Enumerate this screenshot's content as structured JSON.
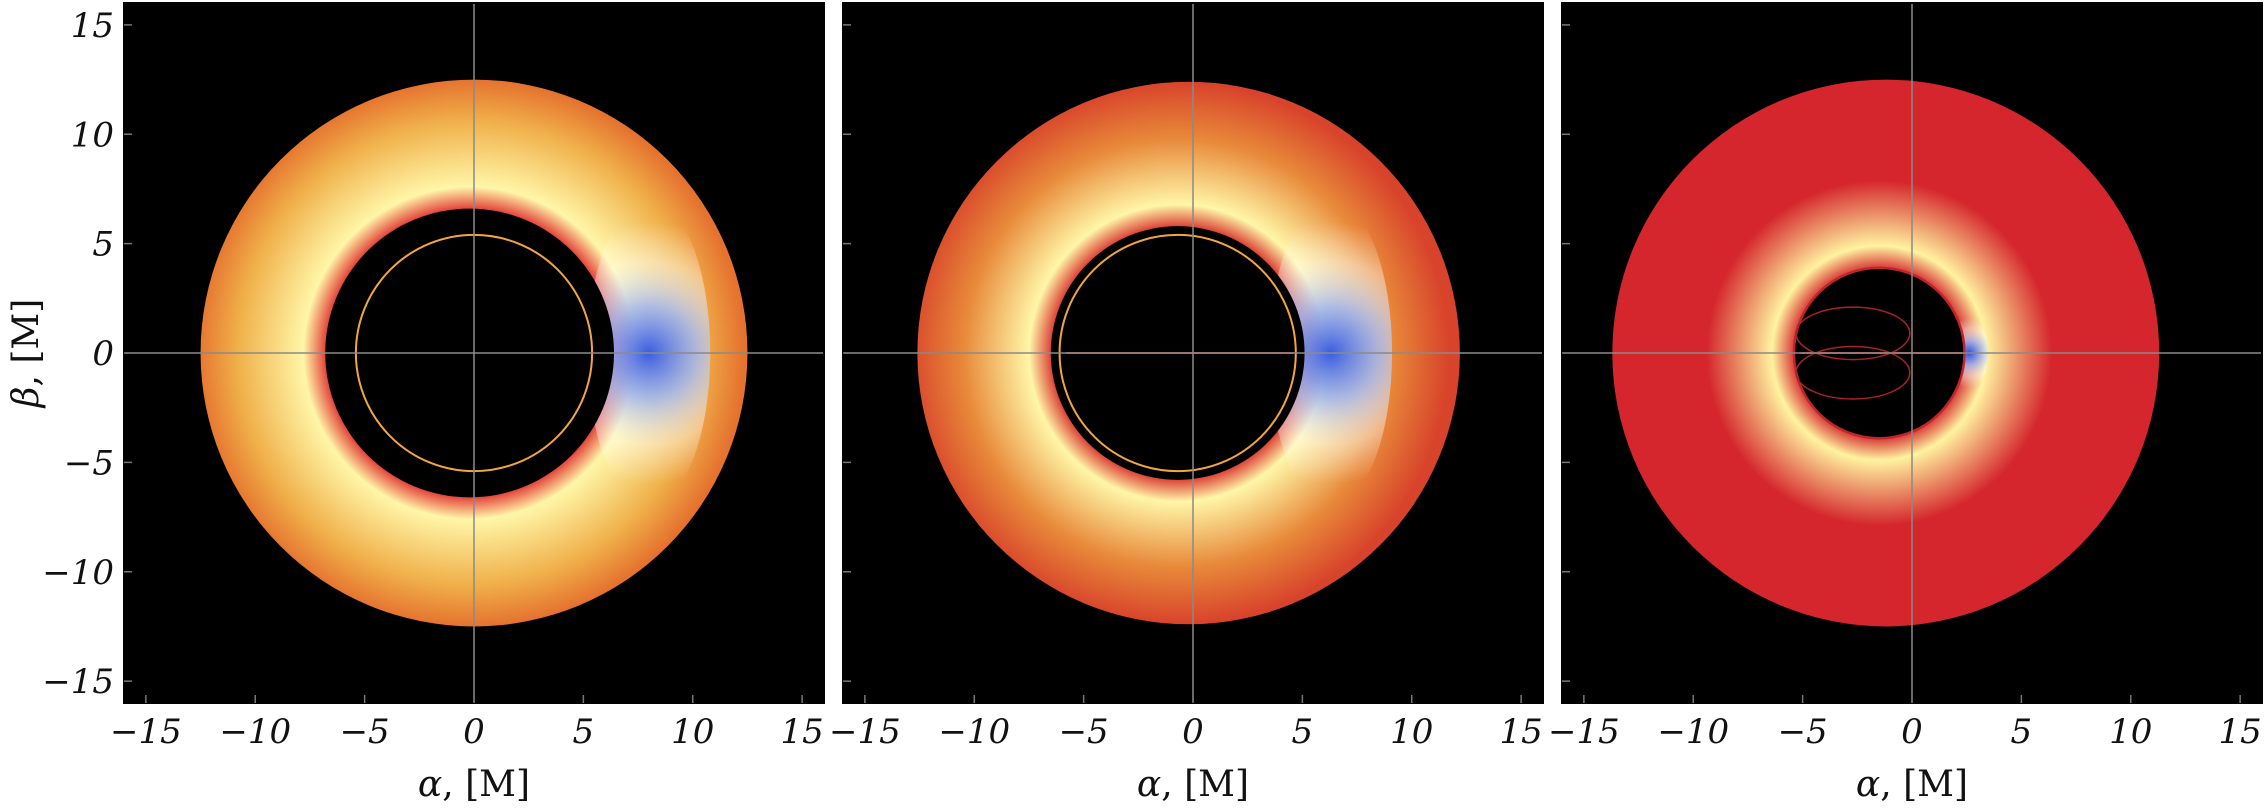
{
  "figure": {
    "panels": [
      {
        "colors": {
          "outer": "#e5732f",
          "mid": "#f0b04a",
          "bright": "#fff6a8",
          "blue": "#3b5de0",
          "edge": "#e0302f"
        },
        "disk": {
          "cx": 0.0,
          "cy": 0.0,
          "r_outer": 12.5,
          "shadow_cx": -0.2,
          "shadow_cy": 0.0,
          "shadow_r": 6.6
        },
        "photon_ring": {
          "cx": 0.0,
          "cy": 0.0,
          "r": 5.4
        },
        "blue_spot": {
          "cx": 8.0,
          "cy": 0.0
        }
      },
      {
        "colors": {
          "outer": "#d8432b",
          "mid": "#e88a3a",
          "bright": "#fff6a8",
          "blue": "#3b5de0",
          "edge": "#d8302b"
        },
        "disk": {
          "cx": -0.2,
          "cy": 0.0,
          "r_outer": 12.4,
          "shadow_cx": -0.7,
          "shadow_cy": 0.0,
          "shadow_r": 5.8
        },
        "photon_ring": {
          "cx": -0.7,
          "cy": 0.0,
          "r": 5.4
        },
        "blue_spot": {
          "cx": 6.3,
          "cy": 0.0
        }
      },
      {
        "colors": {
          "outer": "#d4262c",
          "mid": "#d4262c",
          "bright": "#fff3a0",
          "blue": "#2f4fe0",
          "edge": "#d4262c"
        },
        "disk": {
          "cx": -1.2,
          "cy": 0.0,
          "r_outer": 12.5,
          "shadow_cx": -1.5,
          "shadow_cy": 0.0,
          "shadow_r": 3.9
        },
        "photon_ring": {
          "cx": -1.5,
          "cy": 0.0,
          "r": 3.9
        },
        "blue_spot": {
          "cx": 2.6,
          "cy": 0.0
        }
      }
    ],
    "axes": {
      "x_range": [
        -16,
        16
      ],
      "y_range": [
        -16,
        16
      ],
      "x_ticks": [
        -15,
        -10,
        -5,
        0,
        5,
        10,
        15
      ],
      "y_ticks": [
        15,
        10,
        5,
        0,
        -5,
        -10,
        -15
      ],
      "x_tick_labels": [
        "−15",
        "−10",
        "−5",
        "0",
        "5",
        "10",
        "15"
      ],
      "y_tick_labels": [
        "15",
        "10",
        "5",
        "0",
        "−5",
        "−10",
        "−15"
      ],
      "xlabel_symbol": "α",
      "xlabel_unit": ", [M]",
      "ylabel_symbol": "β",
      "ylabel_unit": ", [M]"
    }
  }
}
